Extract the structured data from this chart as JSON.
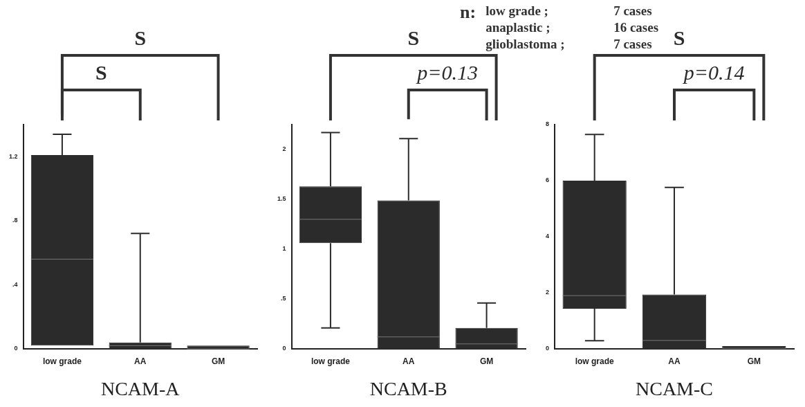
{
  "chart_data": [
    {
      "type": "box",
      "categories": [
        "low grade",
        "AA",
        "GM"
      ],
      "xlabel": "NCAM-A",
      "ylim": [
        0,
        1.4
      ],
      "yticks": [
        0,
        {
          "value": 0.4,
          "label": ".4"
        },
        {
          "value": 0.8,
          "label": ".8"
        },
        1.2
      ],
      "series": [
        {
          "color": "#2b2b2b",
          "boxes": [
            {
              "low": 0.02,
              "q1": 0.02,
              "median": 0.56,
              "q3": 1.21,
              "high": 1.34
            },
            {
              "low": 0,
              "q1": 0,
              "median": 0.02,
              "q3": 0.04,
              "high": 0.72
            },
            {
              "low": 0,
              "q1": 0,
              "median": 0,
              "q3": 0.02,
              "high": 0.02
            }
          ]
        }
      ],
      "annotations": [
        "S",
        "S"
      ]
    },
    {
      "type": "box",
      "categories": [
        "low grade",
        "AA",
        "GM"
      ],
      "xlabel": "NCAM-B",
      "ylim": [
        0,
        2.25
      ],
      "yticks": [
        0,
        {
          "value": 0.5,
          "label": ".5"
        },
        1,
        1.5,
        2
      ],
      "series": [
        {
          "color": "#2b2b2b",
          "boxes": [
            {
              "low": 0.21,
              "q1": 1.06,
              "median": 1.3,
              "q3": 1.63,
              "high": 2.17
            },
            {
              "low": 0,
              "q1": 0,
              "median": 0.12,
              "q3": 1.49,
              "high": 2.11
            },
            {
              "low": 0,
              "q1": 0,
              "median": 0.05,
              "q3": 0.21,
              "high": 0.46
            }
          ]
        }
      ],
      "annotations": [
        "S",
        "p=0.13"
      ]
    },
    {
      "type": "box",
      "categories": [
        "low grade",
        "AA",
        "GM"
      ],
      "xlabel": "NCAM-C",
      "ylim": [
        0,
        8
      ],
      "yticks": [
        0,
        2,
        4,
        6,
        8
      ],
      "series": [
        {
          "color": "#2b2b2b",
          "boxes": [
            {
              "low": 0.29,
              "q1": 1.43,
              "median": 1.9,
              "q3": 6,
              "high": 7.65
            },
            {
              "low": 0,
              "q1": 0,
              "median": 0.3,
              "q3": 1.94,
              "high": 5.76
            },
            {
              "low": 0,
              "q1": 0,
              "median": 0.02,
              "q3": 0.1,
              "high": 0.1
            }
          ]
        }
      ],
      "annotations": [
        "S",
        "p=0.14"
      ]
    },
    {
      "type": "other",
      "annotations": [
        "n:",
        "low grade ;",
        "7 cases",
        "anaplastic ;",
        "16 cases",
        "glioblastoma ;",
        "7 cases"
      ]
    }
  ]
}
